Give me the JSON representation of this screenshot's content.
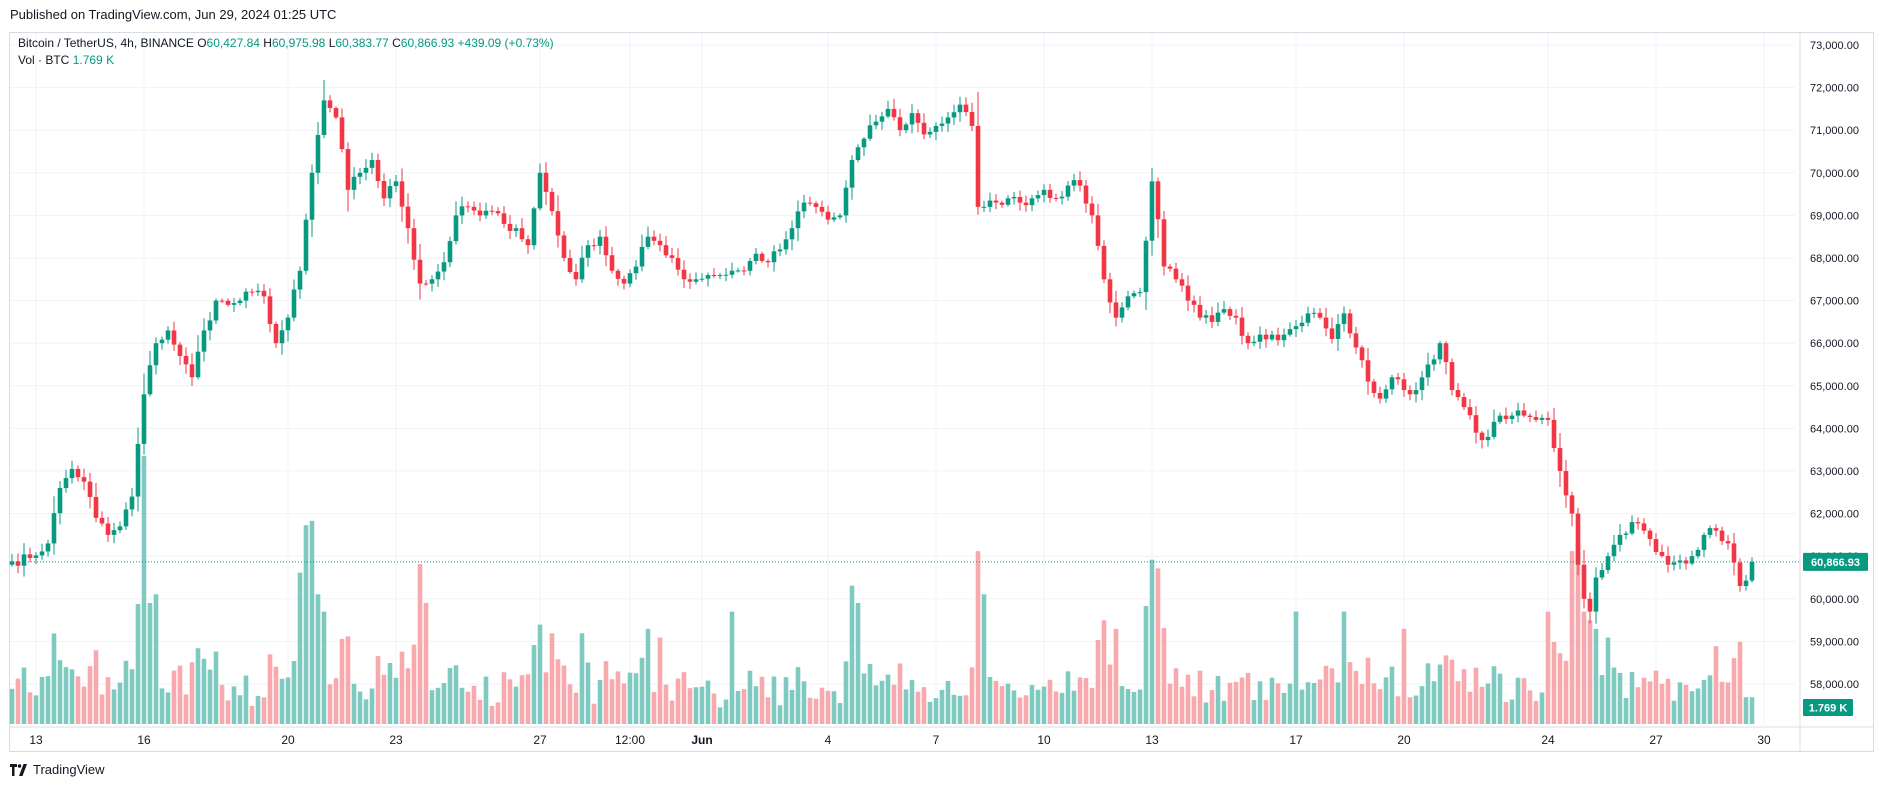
{
  "header": {
    "published": "Published on TradingView.com, Jun 29, 2024 01:25 UTC"
  },
  "legend": {
    "symbol": "Bitcoin / TetherUS, 4h, BINANCE",
    "o_label": "O",
    "o": "60,427.84",
    "h_label": "H",
    "h": "60,975.98",
    "l_label": "L",
    "l": "60,383.77",
    "c_label": "C",
    "c": "60,866.93",
    "change": "+439.09 (+0.73%)",
    "vol_label": "Vol · BTC",
    "vol": "1.769 K"
  },
  "footer": {
    "brand": "TradingView",
    "logo_icon": "tradingview-logo-icon"
  },
  "colors": {
    "up": "#089981",
    "down": "#f23645",
    "vol_up": "#7fcac0",
    "vol_down": "#f7a9ad",
    "grid": "#f0f3fa"
  },
  "chart_data": {
    "type": "candlestick",
    "interval": "4h",
    "y_ticks": [
      "58,000.00",
      "59,000.00",
      "60,000.00",
      "61,000.00",
      "62,000.00",
      "63,000.00",
      "64,000.00",
      "65,000.00",
      "66,000.00",
      "67,000.00",
      "68,000.00",
      "69,000.00",
      "70,000.00",
      "71,000.00",
      "72,000.00",
      "73,000.00"
    ],
    "ylim": [
      57000,
      73800
    ],
    "x_ticks": [
      {
        "label": "13",
        "bar": 4
      },
      {
        "label": "16",
        "bar": 22
      },
      {
        "label": "20",
        "bar": 46
      },
      {
        "label": "23",
        "bar": 64
      },
      {
        "label": "27",
        "bar": 88
      },
      {
        "label": "12:00",
        "bar": 103
      },
      {
        "label": "Jun",
        "bar": 115
      },
      {
        "label": "4",
        "bar": 136
      },
      {
        "label": "7",
        "bar": 154
      },
      {
        "label": "10",
        "bar": 172
      },
      {
        "label": "13",
        "bar": 190
      },
      {
        "label": "17",
        "bar": 214
      },
      {
        "label": "20",
        "bar": 232
      },
      {
        "label": "24",
        "bar": 256
      },
      {
        "label": "27",
        "bar": 274
      },
      {
        "label": "30",
        "bar": 292
      }
    ],
    "last_price": "60,866.93",
    "last_price_value": 60866.93,
    "last_volume": "1.769 K",
    "anchors": [
      [
        0,
        60880
      ],
      [
        3,
        60960
      ],
      [
        6,
        61300
      ],
      [
        8,
        62600
      ],
      [
        10,
        63050
      ],
      [
        12,
        62750
      ],
      [
        14,
        61900
      ],
      [
        16,
        61500
      ],
      [
        18,
        61700
      ],
      [
        20,
        62400
      ],
      [
        22,
        64800
      ],
      [
        24,
        66000
      ],
      [
        26,
        66300
      ],
      [
        28,
        65700
      ],
      [
        30,
        65200
      ],
      [
        32,
        66300
      ],
      [
        34,
        67000
      ],
      [
        36,
        66900
      ],
      [
        38,
        67000
      ],
      [
        40,
        67200
      ],
      [
        42,
        67100
      ],
      [
        44,
        66000
      ],
      [
        46,
        66600
      ],
      [
        48,
        67700
      ],
      [
        50,
        70000
      ],
      [
        52,
        71700
      ],
      [
        54,
        71300
      ],
      [
        56,
        69600
      ],
      [
        58,
        70000
      ],
      [
        60,
        70300
      ],
      [
        62,
        69400
      ],
      [
        64,
        69800
      ],
      [
        66,
        68700
      ],
      [
        68,
        67400
      ],
      [
        70,
        67500
      ],
      [
        72,
        67900
      ],
      [
        74,
        69000
      ],
      [
        76,
        69200
      ],
      [
        78,
        69000
      ],
      [
        80,
        69100
      ],
      [
        82,
        68800
      ],
      [
        84,
        68700
      ],
      [
        86,
        68300
      ],
      [
        88,
        70000
      ],
      [
        90,
        69100
      ],
      [
        92,
        68000
      ],
      [
        94,
        67500
      ],
      [
        96,
        68300
      ],
      [
        98,
        68500
      ],
      [
        100,
        67700
      ],
      [
        102,
        67400
      ],
      [
        104,
        67800
      ],
      [
        106,
        68500
      ],
      [
        108,
        68300
      ],
      [
        110,
        68000
      ],
      [
        112,
        67500
      ],
      [
        114,
        67500
      ],
      [
        116,
        67600
      ],
      [
        118,
        67600
      ],
      [
        120,
        67700
      ],
      [
        122,
        67700
      ],
      [
        124,
        68100
      ],
      [
        126,
        67900
      ],
      [
        128,
        68200
      ],
      [
        130,
        68700
      ],
      [
        132,
        69300
      ],
      [
        134,
        69200
      ],
      [
        136,
        68900
      ],
      [
        138,
        69000
      ],
      [
        140,
        70300
      ],
      [
        142,
        70800
      ],
      [
        144,
        71200
      ],
      [
        146,
        71500
      ],
      [
        148,
        71000
      ],
      [
        150,
        71400
      ],
      [
        152,
        70900
      ],
      [
        154,
        71100
      ],
      [
        156,
        71300
      ],
      [
        158,
        71600
      ],
      [
        160,
        71100
      ],
      [
        161,
        69200
      ],
      [
        162,
        69200
      ],
      [
        164,
        69300
      ],
      [
        166,
        69400
      ],
      [
        168,
        69300
      ],
      [
        170,
        69400
      ],
      [
        172,
        69600
      ],
      [
        174,
        69400
      ],
      [
        176,
        69700
      ],
      [
        178,
        69700
      ],
      [
        180,
        69000
      ],
      [
        182,
        67500
      ],
      [
        184,
        66600
      ],
      [
        186,
        67100
      ],
      [
        188,
        67200
      ],
      [
        190,
        69800
      ],
      [
        192,
        67800
      ],
      [
        194,
        67500
      ],
      [
        196,
        67000
      ],
      [
        198,
        66600
      ],
      [
        200,
        66500
      ],
      [
        202,
        66800
      ],
      [
        204,
        66600
      ],
      [
        206,
        66000
      ],
      [
        208,
        66200
      ],
      [
        210,
        66200
      ],
      [
        212,
        66200
      ],
      [
        214,
        66400
      ],
      [
        216,
        66700
      ],
      [
        218,
        66600
      ],
      [
        220,
        66100
      ],
      [
        222,
        66700
      ],
      [
        224,
        65900
      ],
      [
        226,
        65100
      ],
      [
        228,
        64700
      ],
      [
        230,
        65200
      ],
      [
        232,
        64900
      ],
      [
        234,
        64900
      ],
      [
        236,
        65500
      ],
      [
        238,
        66000
      ],
      [
        240,
        64900
      ],
      [
        242,
        64500
      ],
      [
        244,
        63900
      ],
      [
        246,
        63800
      ],
      [
        248,
        64300
      ],
      [
        250,
        64300
      ],
      [
        252,
        64300
      ],
      [
        254,
        64200
      ],
      [
        256,
        64200
      ],
      [
        258,
        63000
      ],
      [
        260,
        62000
      ],
      [
        261,
        60800
      ],
      [
        262,
        60000
      ],
      [
        263,
        59700
      ],
      [
        264,
        60500
      ],
      [
        266,
        61000
      ],
      [
        268,
        61500
      ],
      [
        270,
        61800
      ],
      [
        272,
        61600
      ],
      [
        274,
        61100
      ],
      [
        276,
        60800
      ],
      [
        278,
        60900
      ],
      [
        280,
        61000
      ],
      [
        282,
        61500
      ],
      [
        284,
        61600
      ],
      [
        286,
        61300
      ],
      [
        288,
        60300
      ],
      [
        289,
        60427
      ],
      [
        290,
        60867
      ]
    ],
    "volume_spikes": [
      [
        22,
        6.2
      ],
      [
        23,
        2.8
      ],
      [
        24,
        3.0
      ],
      [
        48,
        3.5
      ],
      [
        49,
        4.6
      ],
      [
        50,
        4.7
      ],
      [
        51,
        3.0
      ],
      [
        52,
        2.6
      ],
      [
        68,
        3.7
      ],
      [
        69,
        2.8
      ],
      [
        88,
        2.3
      ],
      [
        90,
        2.1
      ],
      [
        95,
        2.1
      ],
      [
        106,
        2.2
      ],
      [
        108,
        2.0
      ],
      [
        120,
        2.6
      ],
      [
        140,
        3.2
      ],
      [
        141,
        2.8
      ],
      [
        161,
        4.0
      ],
      [
        162,
        3.0
      ],
      [
        182,
        2.4
      ],
      [
        184,
        2.2
      ],
      [
        190,
        3.8
      ],
      [
        191,
        3.6
      ],
      [
        214,
        2.6
      ],
      [
        222,
        2.6
      ],
      [
        232,
        2.2
      ],
      [
        256,
        2.6
      ],
      [
        260,
        4.0
      ],
      [
        261,
        4.2
      ],
      [
        262,
        2.6
      ],
      [
        263,
        2.4
      ],
      [
        264,
        2.2
      ],
      [
        266,
        2.0
      ],
      [
        284,
        1.8
      ],
      [
        288,
        1.9
      ]
    ]
  }
}
